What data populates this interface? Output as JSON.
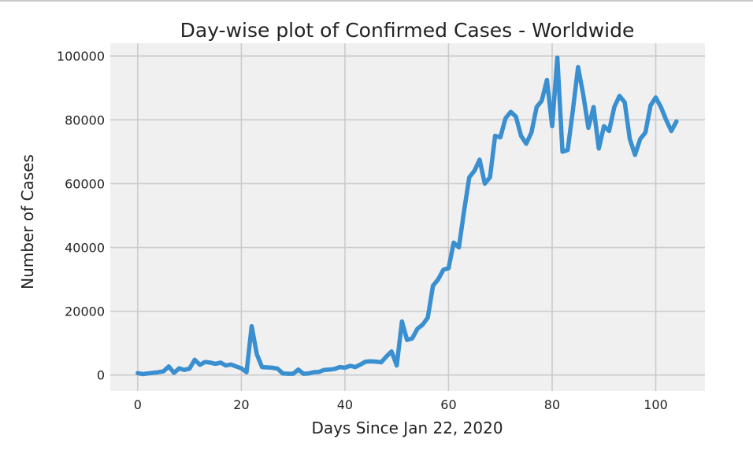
{
  "chart_data": {
    "type": "line",
    "title": "Day-wise plot of Confirmed Cases - Worldwide",
    "xlabel": "Days Since Jan 22, 2020",
    "ylabel": "Number of Cases",
    "xlim": [
      -5.3,
      109.5
    ],
    "ylim": [
      -5000,
      104000
    ],
    "xticks": [
      0,
      20,
      40,
      60,
      80,
      100
    ],
    "yticks": [
      0,
      20000,
      40000,
      60000,
      80000,
      100000
    ],
    "grid": true,
    "background": "#f0f0f0",
    "series": [
      {
        "color": "#3a8fd0",
        "x": [
          0,
          1,
          2,
          3,
          4,
          5,
          6,
          7,
          8,
          9,
          10,
          11,
          12,
          13,
          14,
          15,
          16,
          17,
          18,
          19,
          20,
          21,
          22,
          23,
          24,
          25,
          26,
          27,
          28,
          29,
          30,
          31,
          32,
          33,
          34,
          35,
          36,
          37,
          38,
          39,
          40,
          41,
          42,
          43,
          44,
          45,
          46,
          47,
          48,
          49,
          50,
          51,
          52,
          53,
          54,
          55,
          56,
          57,
          58,
          59,
          60,
          61,
          62,
          63,
          64,
          65,
          66,
          67,
          68,
          69,
          70,
          71,
          72,
          73,
          74,
          75,
          76,
          77,
          78,
          79,
          80,
          81,
          82,
          83,
          84,
          85,
          86,
          87,
          88,
          89,
          90,
          91,
          92,
          93,
          94,
          95,
          96,
          97,
          98,
          99,
          100,
          101,
          102,
          103,
          104
        ],
        "y": [
          600,
          300,
          500,
          700,
          900,
          1200,
          2700,
          700,
          2100,
          1600,
          2000,
          4800,
          3200,
          4100,
          3900,
          3500,
          3900,
          3000,
          3300,
          2700,
          2100,
          900,
          15300,
          6500,
          2500,
          2400,
          2300,
          2000,
          500,
          400,
          400,
          1700,
          400,
          500,
          900,
          1000,
          1600,
          1700,
          1900,
          2500,
          2300,
          2900,
          2500,
          3300,
          4200,
          4300,
          4200,
          4000,
          5800,
          7400,
          3000,
          16800,
          11000,
          11500,
          14500,
          15800,
          18000,
          28000,
          30000,
          33000,
          33500,
          41500,
          40000,
          51500,
          62000,
          64000,
          67500,
          60000,
          62000,
          75000,
          74500,
          80500,
          82500,
          81000,
          75000,
          72500,
          76000,
          84000,
          86000,
          92500,
          78000,
          99500,
          70000,
          70500,
          83000,
          96500,
          88000,
          77500,
          84000,
          71000,
          78000,
          76500,
          84000,
          87500,
          85500,
          74000,
          69000,
          74000,
          76000,
          84500,
          87000,
          84000,
          80000,
          76500,
          79500
        ]
      }
    ]
  }
}
